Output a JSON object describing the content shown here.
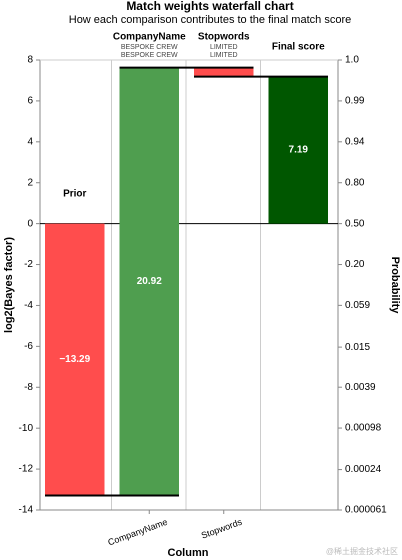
{
  "chart_data": {
    "type": "waterfall",
    "title": "Match weights waterfall chart",
    "subtitle": "How each comparison contributes to the final match score",
    "x_label": "Column",
    "y_label": "log2(Bayes factor)",
    "y2_label": "Probability",
    "categories": [
      "Prior",
      "CompanyName",
      "Stopwords",
      "Final score"
    ],
    "details": [
      null,
      [
        "BESPOKE CREW",
        "BESPOKE CREW"
      ],
      [
        "LIMITED",
        "LIMITED"
      ],
      null
    ],
    "xtick_shown": [
      false,
      true,
      true,
      false
    ],
    "values": [
      -13.29,
      20.92,
      -0.44,
      7.19
    ],
    "value_labels": [
      "−13.29",
      "20.92",
      null,
      "7.19"
    ],
    "colors": [
      "#ff4d4d",
      "#4f9e4f",
      "#ff4d4d",
      "#005700"
    ],
    "final_index": 3,
    "ylim": [
      -14,
      8
    ],
    "yticks": [
      -14,
      -12,
      -10,
      -8,
      -6,
      -4,
      -2,
      0,
      2,
      4,
      6,
      8
    ],
    "y2ticks": [
      {
        "value": 0.99611,
        "label": "1.0"
      },
      {
        "value": 0.98462,
        "label": "0.99"
      },
      {
        "value": 0.94118,
        "label": "0.94"
      },
      {
        "value": 0.8,
        "label": "0.80"
      },
      {
        "value": 0.5,
        "label": "0.50"
      },
      {
        "value": 0.2,
        "label": "0.20"
      },
      {
        "value": 0.059,
        "label": "0.059"
      },
      {
        "value": 0.015,
        "label": "0.015"
      },
      {
        "value": 0.0039,
        "label": "0.0039"
      },
      {
        "value": 0.00098,
        "label": "0.00098"
      },
      {
        "value": 0.00024,
        "label": "0.00024"
      },
      {
        "value": 6.1e-05,
        "label": "0.000061"
      }
    ],
    "watermark": "@稀土掘金技术社区"
  }
}
